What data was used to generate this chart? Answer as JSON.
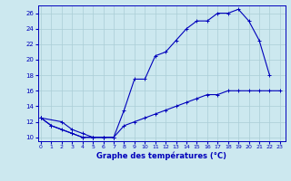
{
  "title": "Graphe des températures (°C)",
  "bg_color": "#cce8ef",
  "grid_color": "#aacdd6",
  "line_color": "#0000bb",
  "curve1_x": [
    0,
    1,
    2,
    3,
    4,
    5,
    6,
    7,
    8,
    9,
    10,
    11,
    12,
    13,
    14,
    15,
    16,
    17,
    18,
    19,
    20,
    21,
    22
  ],
  "curve1_y": [
    12.5,
    11.5,
    11.0,
    10.5,
    10.0,
    10.0,
    10.0,
    10.0,
    13.5,
    17.5,
    17.5,
    20.5,
    21.0,
    22.5,
    24.0,
    25.0,
    25.0,
    26.0,
    26.0,
    26.5,
    25.0,
    22.5,
    18.0
  ],
  "curve2_x": [
    0,
    2,
    3,
    4,
    5,
    6,
    7,
    8,
    9,
    10,
    11,
    12,
    13,
    14,
    15,
    16,
    17,
    18,
    19,
    20,
    21,
    22,
    23
  ],
  "curve2_y": [
    12.5,
    12.0,
    11.0,
    10.5,
    10.0,
    10.0,
    10.0,
    11.5,
    12.0,
    12.5,
    13.0,
    13.5,
    14.0,
    14.5,
    15.0,
    15.5,
    15.5,
    16.0,
    16.0,
    16.0,
    16.0,
    16.0,
    16.0
  ],
  "curve3_x": [
    0,
    1,
    3,
    4,
    5,
    6,
    7
  ],
  "curve3_y": [
    12.5,
    11.5,
    10.5,
    10.0,
    10.0,
    10.0,
    10.0
  ],
  "ylim": [
    9.5,
    27.0
  ],
  "yticks": [
    10,
    12,
    14,
    16,
    18,
    20,
    22,
    24,
    26
  ],
  "xlim": [
    -0.3,
    23.5
  ],
  "xticks": [
    0,
    1,
    2,
    3,
    4,
    5,
    6,
    7,
    8,
    9,
    10,
    11,
    12,
    13,
    14,
    15,
    16,
    17,
    18,
    19,
    20,
    21,
    22,
    23
  ]
}
